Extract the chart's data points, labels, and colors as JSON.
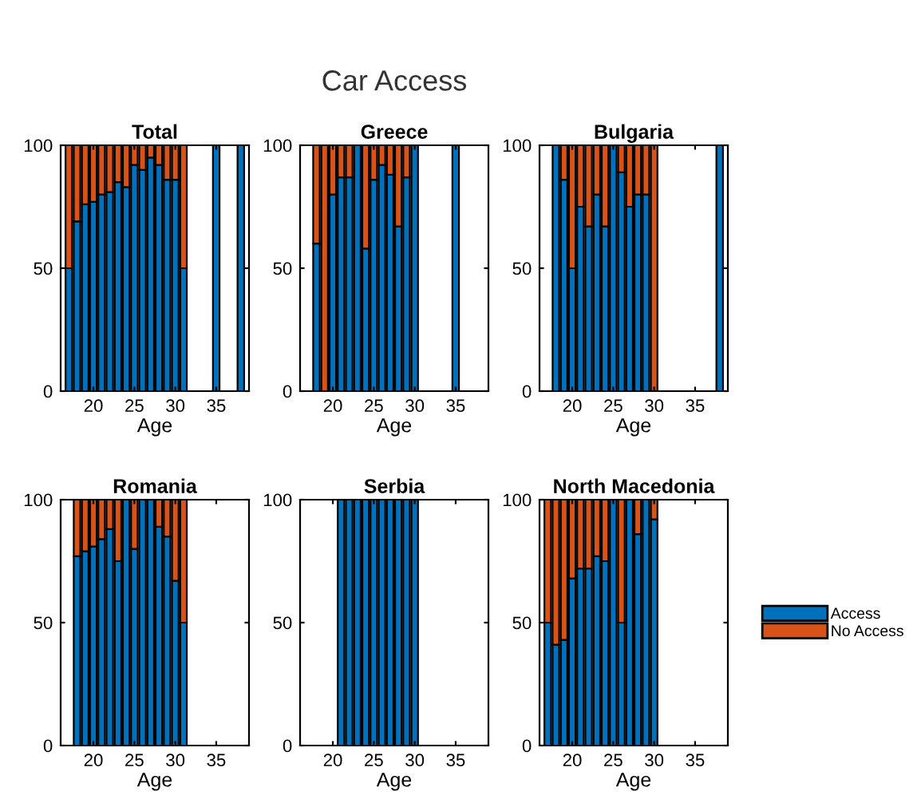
{
  "chart_data": [
    {
      "type": "bar",
      "stacked": true,
      "title": "Total",
      "xlabel": "Age",
      "annotations": [
        "Car Access"
      ],
      "xlim": [
        16,
        39
      ],
      "xticks": [
        20,
        25,
        30,
        35
      ],
      "ylim": [
        0,
        100
      ],
      "yticks": [
        0,
        50,
        100
      ],
      "grid": false,
      "legend": false,
      "x": [
        17,
        18,
        19,
        20,
        21,
        22,
        23,
        24,
        25,
        26,
        27,
        28,
        29,
        30,
        31,
        32,
        33,
        34,
        35,
        36,
        37,
        38
      ],
      "series": [
        {
          "color": "#0072bd",
          "values": [
            50,
            69,
            76,
            77,
            80,
            81,
            85,
            83,
            92,
            90,
            95,
            92,
            86,
            86,
            50,
            0,
            0,
            0,
            100,
            0,
            0,
            100
          ]
        },
        {
          "color": "#d95319",
          "values": [
            50,
            31,
            24,
            23,
            20,
            19,
            15,
            17,
            8,
            10,
            5,
            8,
            14,
            14,
            50,
            0,
            0,
            0,
            0,
            0,
            0,
            0
          ]
        }
      ]
    },
    {
      "type": "bar",
      "stacked": true,
      "title": "Greece",
      "xlabel": "Age",
      "xlim": [
        16,
        39
      ],
      "xticks": [
        20,
        25,
        30,
        35
      ],
      "ylim": [
        0,
        100
      ],
      "yticks": [
        0,
        50,
        100
      ],
      "grid": false,
      "legend": false,
      "x": [
        18,
        19,
        20,
        21,
        22,
        23,
        24,
        25,
        26,
        27,
        28,
        29,
        30,
        31,
        32,
        33,
        34,
        35,
        36,
        37,
        38
      ],
      "series": [
        {
          "color": "#0072bd",
          "values": [
            60,
            0,
            80,
            87,
            87,
            100,
            58,
            86,
            92,
            88,
            67,
            87,
            100,
            0,
            0,
            0,
            0,
            100,
            0,
            0,
            0
          ]
        },
        {
          "color": "#d95319",
          "values": [
            40,
            100,
            20,
            13,
            13,
            0,
            42,
            14,
            8,
            12,
            33,
            13,
            0,
            0,
            0,
            0,
            0,
            0,
            0,
            0,
            0
          ]
        }
      ]
    },
    {
      "type": "bar",
      "stacked": true,
      "title": "Bulgaria",
      "xlabel": "Age",
      "xlim": [
        16,
        39
      ],
      "xticks": [
        20,
        25,
        30,
        35
      ],
      "ylim": [
        0,
        100
      ],
      "yticks": [
        0,
        50,
        100
      ],
      "grid": false,
      "legend": false,
      "x": [
        18,
        19,
        20,
        21,
        22,
        23,
        24,
        25,
        26,
        27,
        28,
        29,
        30,
        31,
        32,
        33,
        34,
        35,
        36,
        37,
        38
      ],
      "series": [
        {
          "color": "#0072bd",
          "values": [
            100,
            86,
            50,
            75,
            67,
            80,
            67,
            100,
            89,
            75,
            80,
            80,
            0,
            0,
            0,
            0,
            0,
            0,
            0,
            0,
            100
          ]
        },
        {
          "color": "#d95319",
          "values": [
            0,
            14,
            50,
            25,
            33,
            20,
            33,
            0,
            11,
            25,
            20,
            20,
            100,
            0,
            0,
            0,
            0,
            0,
            0,
            0,
            0
          ]
        }
      ]
    },
    {
      "type": "bar",
      "stacked": true,
      "title": "Romania",
      "xlabel": "Age",
      "xlim": [
        16,
        39
      ],
      "xticks": [
        20,
        25,
        30,
        35
      ],
      "ylim": [
        0,
        100
      ],
      "yticks": [
        0,
        50,
        100
      ],
      "grid": false,
      "legend": false,
      "x": [
        18,
        19,
        20,
        21,
        22,
        23,
        24,
        25,
        26,
        27,
        28,
        29,
        30,
        31
      ],
      "series": [
        {
          "color": "#0072bd",
          "values": [
            77,
            79,
            81,
            84,
            88,
            75,
            100,
            80,
            100,
            100,
            89,
            85,
            67,
            50
          ]
        },
        {
          "color": "#d95319",
          "values": [
            23,
            21,
            19,
            16,
            12,
            25,
            0,
            20,
            0,
            0,
            11,
            15,
            33,
            50
          ]
        }
      ]
    },
    {
      "type": "bar",
      "stacked": true,
      "title": "Serbia",
      "xlabel": "Age",
      "xlim": [
        16,
        39
      ],
      "xticks": [
        20,
        25,
        30,
        35
      ],
      "ylim": [
        0,
        100
      ],
      "yticks": [
        0,
        50,
        100
      ],
      "grid": false,
      "legend": false,
      "x": [
        21,
        22,
        23,
        24,
        25,
        26,
        27,
        28,
        29,
        30
      ],
      "series": [
        {
          "color": "#0072bd",
          "values": [
            100,
            100,
            100,
            100,
            100,
            100,
            100,
            100,
            100,
            100
          ]
        },
        {
          "color": "#d95319",
          "values": [
            0,
            0,
            0,
            0,
            0,
            0,
            0,
            0,
            0,
            0
          ]
        }
      ]
    },
    {
      "type": "bar",
      "stacked": true,
      "title": "North Macedonia",
      "xlabel": "Age",
      "xlim": [
        16,
        39
      ],
      "xticks": [
        20,
        25,
        30,
        35
      ],
      "ylim": [
        0,
        100
      ],
      "yticks": [
        0,
        50,
        100
      ],
      "grid": false,
      "legend": "right",
      "x": [
        17,
        18,
        19,
        20,
        21,
        22,
        23,
        24,
        25,
        26,
        27,
        28,
        29,
        30
      ],
      "series": [
        {
          "name": "Access",
          "color": "#0072bd",
          "values": [
            50,
            41,
            43,
            68,
            72,
            72,
            77,
            75,
            100,
            50,
            100,
            86,
            100,
            92
          ]
        },
        {
          "name": "No Access",
          "color": "#d95319",
          "values": [
            50,
            59,
            57,
            32,
            28,
            28,
            23,
            25,
            0,
            50,
            0,
            14,
            0,
            8
          ]
        }
      ]
    }
  ]
}
